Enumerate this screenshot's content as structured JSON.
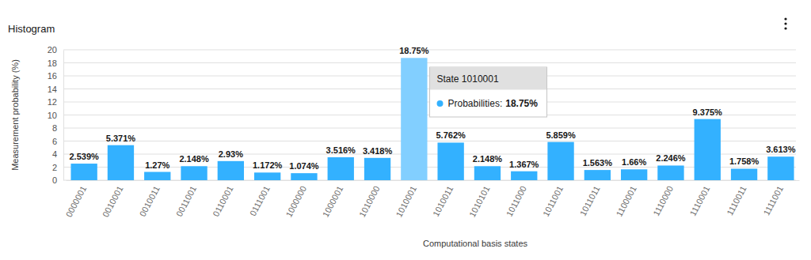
{
  "chart_data": {
    "type": "bar",
    "title": "Histogram",
    "x_label": "Computational basis states",
    "y_label": "Measurement probability (%)",
    "categories": [
      "0000001",
      "0010001",
      "0010011",
      "0011001",
      "0110001",
      "0111001",
      "1000000",
      "1000001",
      "1010000",
      "1010001",
      "1010011",
      "1010101",
      "1011000",
      "1011001",
      "1011011",
      "1100001",
      "1110000",
      "1110001",
      "1110011",
      "1111001"
    ],
    "values": [
      2.539,
      5.371,
      1.27,
      2.148,
      2.93,
      1.172,
      1.074,
      3.516,
      3.418,
      18.75,
      5.762,
      2.148,
      1.367,
      5.859,
      1.563,
      1.66,
      2.246,
      9.375,
      1.758,
      3.613
    ],
    "value_labels": [
      "2.539%",
      "5.371%",
      "1.27%",
      "2.148%",
      "2.93%",
      "1.172%",
      "1.074%",
      "3.516%",
      "3.418%",
      "18.75%",
      "5.762%",
      "2.148%",
      "1.367%",
      "5.859%",
      "1.563%",
      "1.66%",
      "2.246%",
      "9.375%",
      "1.758%",
      "3.613%"
    ],
    "colors": [
      "#33b1ff",
      "#33b1ff",
      "#33b1ff",
      "#33b1ff",
      "#33b1ff",
      "#33b1ff",
      "#33b1ff",
      "#33b1ff",
      "#33b1ff",
      "#82cfff",
      "#33b1ff",
      "#33b1ff",
      "#33b1ff",
      "#33b1ff",
      "#33b1ff",
      "#33b1ff",
      "#33b1ff",
      "#33b1ff",
      "#33b1ff",
      "#33b1ff"
    ],
    "data_labels": true,
    "ylim": [
      0,
      20
    ],
    "yticks": [
      0,
      2,
      4,
      6,
      8,
      10,
      12,
      14,
      16,
      18,
      20
    ],
    "grid": true,
    "tooltip": {
      "title": "State 1010001",
      "label": "Probabilities:",
      "value_label": "18.75%"
    }
  }
}
